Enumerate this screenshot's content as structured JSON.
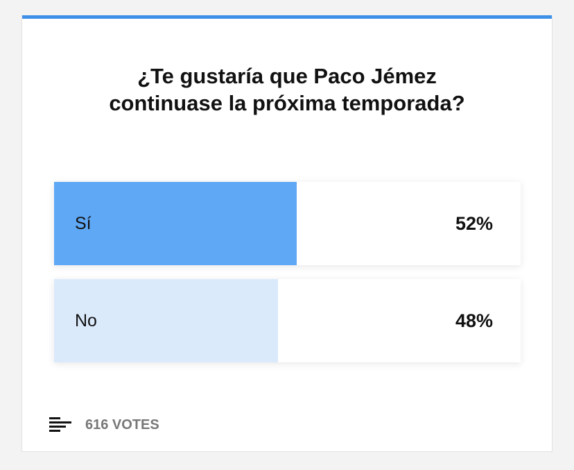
{
  "chart_data": {
    "type": "bar",
    "orientation": "horizontal",
    "title": "¿Te gustaría que Paco Jémez continuase la próxima temporada?",
    "categories": [
      "Sí",
      "No"
    ],
    "values": [
      52,
      48
    ],
    "value_labels": [
      "52%",
      "48%"
    ],
    "colors": [
      "#5fa8f5",
      "#dbeafb"
    ],
    "xlim": [
      0,
      100
    ],
    "footer": "616 VOTES",
    "accent_color": "#3d8fe8"
  }
}
